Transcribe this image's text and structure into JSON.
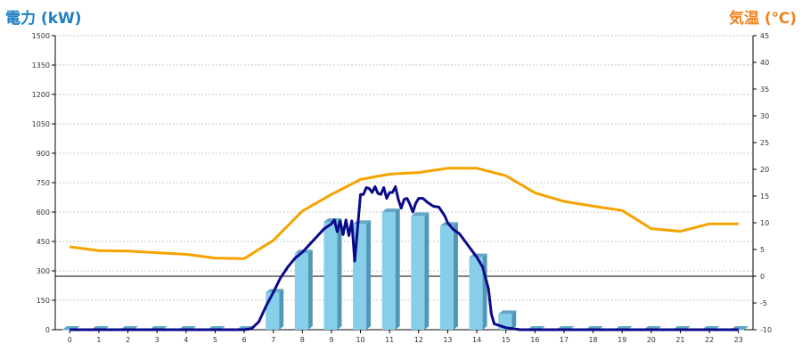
{
  "chart_data": {
    "type": "bar",
    "left_axis": {
      "label": "電力 (kW)",
      "range": [
        0,
        1500
      ],
      "ticks": [
        "0",
        "150",
        "300",
        "450",
        "600",
        "750",
        "900",
        "1050",
        "1200",
        "1350",
        "1500"
      ]
    },
    "right_axis": {
      "label": "気温 (℃)",
      "range": [
        -10,
        45
      ],
      "ticks": [
        "-10",
        "-5",
        "0",
        "5",
        "10",
        "15",
        "20",
        "25",
        "30",
        "35",
        "40",
        "45"
      ]
    },
    "categories": [
      "0",
      "1",
      "2",
      "3",
      "4",
      "5",
      "6",
      "7",
      "8",
      "9",
      "10",
      "11",
      "12",
      "13",
      "14",
      "15",
      "16",
      "17",
      "18",
      "19",
      "20",
      "21",
      "22",
      "23"
    ],
    "grid": true,
    "legend": "none",
    "series": [
      {
        "kind": "bar",
        "axis": "left",
        "color": "#87ceeb",
        "values": [
          0,
          0,
          0,
          0,
          0,
          0,
          0,
          190,
          390,
          550,
          540,
          600,
          580,
          530,
          370,
          80,
          0,
          0,
          0,
          0,
          0,
          0,
          0,
          0
        ]
      },
      {
        "kind": "line",
        "axis": "left",
        "color": "#0a0a8a",
        "x": [
          6.0,
          6.25,
          6.5,
          6.75,
          7.0,
          7.25,
          7.5,
          7.75,
          8.0,
          8.25,
          8.5,
          8.75,
          9.0,
          9.1,
          9.2,
          9.3,
          9.4,
          9.5,
          9.6,
          9.7,
          9.8,
          9.9,
          10.0,
          10.1,
          10.2,
          10.3,
          10.4,
          10.5,
          10.6,
          10.7,
          10.8,
          10.9,
          11.0,
          11.1,
          11.2,
          11.3,
          11.4,
          11.5,
          11.6,
          11.7,
          11.8,
          11.9,
          12.0,
          12.15,
          12.3,
          12.5,
          12.7,
          12.9,
          13.0,
          13.2,
          13.4,
          13.6,
          13.8,
          14.0,
          14.2,
          14.4,
          14.5,
          14.6,
          14.8,
          15.0,
          15.25,
          15.5,
          15.75,
          16.0
        ],
        "values": [
          0,
          5,
          40,
          120,
          190,
          265,
          320,
          365,
          395,
          435,
          475,
          515,
          540,
          560,
          500,
          555,
          485,
          560,
          480,
          555,
          350,
          520,
          690,
          690,
          725,
          720,
          700,
          730,
          695,
          690,
          725,
          670,
          700,
          700,
          730,
          665,
          620,
          665,
          670,
          640,
          600,
          645,
          670,
          670,
          650,
          630,
          625,
          580,
          545,
          510,
          490,
          450,
          410,
          370,
          320,
          210,
          80,
          30,
          20,
          10,
          5,
          0,
          0,
          0
        ]
      },
      {
        "kind": "line",
        "axis": "right",
        "color": "#f5a300",
        "values": [
          5.5,
          4.8,
          4.7,
          4.4,
          4.1,
          3.4,
          3.3,
          6.7,
          12.2,
          15.3,
          18.1,
          19.1,
          19.4,
          20.2,
          20.2,
          18.8,
          15.6,
          14.0,
          13.1,
          12.3,
          8.9,
          8.4,
          9.8,
          9.8
        ]
      }
    ]
  }
}
